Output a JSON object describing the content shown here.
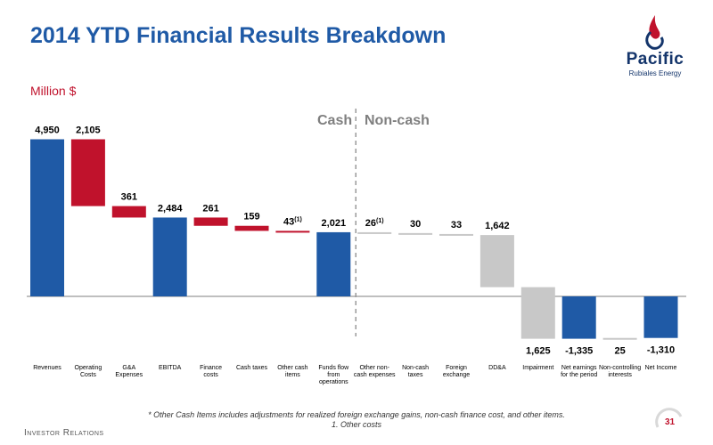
{
  "header": {
    "title": "2014 YTD Financial Results Breakdown",
    "unit_label": "Million $"
  },
  "logo": {
    "word": "Pacific",
    "sub": "Rubiales Energy"
  },
  "divider": {
    "left_label": "Cash",
    "right_label": "Non-cash"
  },
  "chart_data": {
    "type": "bar",
    "subtype": "waterfall",
    "categories": [
      "Revenues",
      "Operating Costs",
      "G&A Expenses",
      "EBITDA",
      "Finance costs",
      "Cash taxes",
      "Other cash items",
      "Funds flow from operations",
      "Other non-cash expenses",
      "Non-cash taxes",
      "Foreign exchange",
      "DD&A",
      "Impairment",
      "Net earnings for the period",
      "Non-controlling interests",
      "Net Income"
    ],
    "category_lines": [
      [
        "Revenues"
      ],
      [
        "Operating",
        "Costs"
      ],
      [
        "G&A",
        "Expenses"
      ],
      [
        "EBITDA"
      ],
      [
        "Finance",
        "costs"
      ],
      [
        "Cash taxes"
      ],
      [
        "Other cash",
        "items"
      ],
      [
        "Funds flow",
        "from",
        "operations"
      ],
      [
        "Other non-",
        "cash expenses"
      ],
      [
        "Non-cash",
        "taxes"
      ],
      [
        "Foreign",
        "exchange"
      ],
      [
        "DD&A"
      ],
      [
        "Impairment"
      ],
      [
        "Net earnings",
        "for the period"
      ],
      [
        "Non-controlling",
        "interests"
      ],
      [
        "Net Income"
      ]
    ],
    "value_labels": [
      "4,950",
      "2,105",
      "361",
      "2,484",
      "261",
      "159",
      "43",
      "2,021",
      "26",
      "30",
      "33",
      "1,642",
      "1,625",
      "-1,335",
      "25",
      "-1,310"
    ],
    "label_superscripts": [
      "",
      "",
      "",
      "",
      "",
      "",
      "(1)",
      "",
      "(1)",
      "",
      "",
      "",
      "",
      "",
      "",
      ""
    ],
    "bars": [
      {
        "start": 0,
        "end": 4950,
        "kind": "total"
      },
      {
        "start": 4950,
        "end": 2845,
        "kind": "cash_cost"
      },
      {
        "start": 2845,
        "end": 2484,
        "kind": "cash_cost"
      },
      {
        "start": 0,
        "end": 2484,
        "kind": "total"
      },
      {
        "start": 2484,
        "end": 2223,
        "kind": "cash_cost"
      },
      {
        "start": 2223,
        "end": 2064,
        "kind": "cash_cost"
      },
      {
        "start": 2064,
        "end": 2021,
        "kind": "cash_cost"
      },
      {
        "start": 0,
        "end": 2021,
        "kind": "total"
      },
      {
        "start": 2021,
        "end": 1995,
        "kind": "noncash"
      },
      {
        "start": 1995,
        "end": 1965,
        "kind": "noncash"
      },
      {
        "start": 1965,
        "end": 1932,
        "kind": "noncash"
      },
      {
        "start": 1932,
        "end": 290,
        "kind": "noncash"
      },
      {
        "start": 290,
        "end": -1335,
        "kind": "noncash"
      },
      {
        "start": 0,
        "end": -1335,
        "kind": "total"
      },
      {
        "start": -1335,
        "end": -1310,
        "kind": "noncash"
      },
      {
        "start": 0,
        "end": -1310,
        "kind": "total"
      }
    ],
    "divider_after_index": 7,
    "colors": {
      "total": "#1f5aa6",
      "cash_cost": "#c0122c",
      "noncash": "#c8c8c8",
      "axis": "#7f7f7f"
    },
    "ylim": [
      -1700,
      5300
    ]
  },
  "footnotes": {
    "note1": "* Other Cash Items includes adjustments for realized foreign exchange gains, non-cash finance cost, and other items.",
    "note2": "1. Other costs"
  },
  "footer": {
    "section": "Investor Relations",
    "page": "31"
  }
}
